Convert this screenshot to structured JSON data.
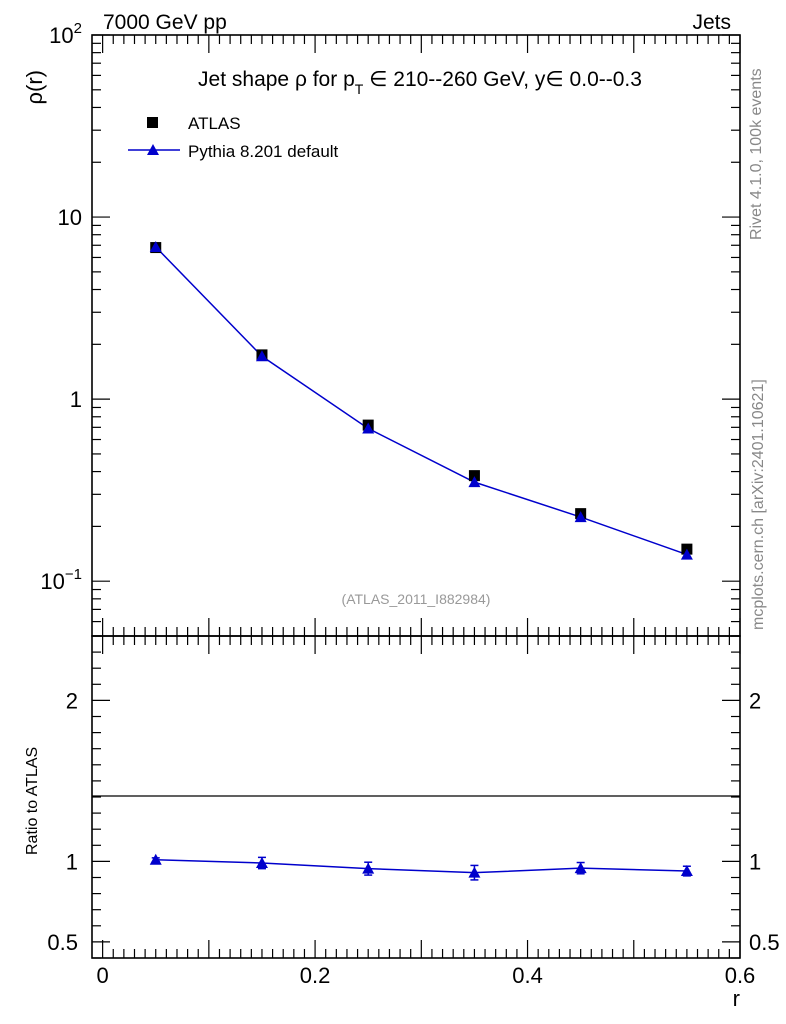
{
  "header": {
    "left": "7000 GeV pp",
    "right": "Jets"
  },
  "side_labels": {
    "rivet": "Rivet 4.1.0,  100k events",
    "mcplots": "mcplots.cern.ch [arXiv:2401.10621]"
  },
  "colors": {
    "data": "#000000",
    "mc": "#0000cc",
    "watermark": "#999999"
  },
  "chart_data": [
    {
      "type": "scatter",
      "panel": "main",
      "title": "Jet shape ρ for p_T ∈ 210--260 GeV, y∈ 0.0--0.3",
      "title_parts": {
        "pre": "Jet shape ρ for p",
        "sub": "T",
        "post": " ∈ 210--260 GeV, y∈ 0.0--0.3"
      },
      "ylabel": "ρ(r)",
      "yscale": "log",
      "ylim": [
        0.05,
        100
      ],
      "xlim": [
        -0.01,
        0.6
      ],
      "yticks": [
        {
          "value": 100,
          "base": "10",
          "exp": "2"
        },
        {
          "value": 10,
          "base": "10",
          "exp": ""
        },
        {
          "value": 1,
          "base": "1",
          "exp": ""
        },
        {
          "value": 0.1,
          "base": "10",
          "exp": "−1"
        }
      ],
      "watermark": "(ATLAS_2011_I882984)",
      "legend": [
        {
          "label": "ATLAS",
          "marker": "square"
        },
        {
          "label": "Pythia 8.201 default",
          "marker": "triangle"
        }
      ],
      "series": [
        {
          "name": "ATLAS",
          "x": [
            0.05,
            0.15,
            0.25,
            0.35,
            0.45,
            0.55
          ],
          "y": [
            6.8,
            1.75,
            0.72,
            0.38,
            0.235,
            0.15
          ]
        },
        {
          "name": "Pythia 8.201 default",
          "x": [
            0.05,
            0.15,
            0.25,
            0.35,
            0.45,
            0.55
          ],
          "y": [
            6.85,
            1.72,
            0.69,
            0.35,
            0.225,
            0.14
          ]
        }
      ]
    },
    {
      "type": "scatter",
      "panel": "ratio",
      "ylabel": "Ratio to ATLAS",
      "xlabel": "r",
      "ylim": [
        0.4,
        2.4
      ],
      "xlim": [
        -0.01,
        0.6
      ],
      "xticks": [
        "0",
        "0.2",
        "0.4",
        "0.6"
      ],
      "yticks": [
        "0.5",
        "1",
        "2"
      ],
      "series": [
        {
          "name": "Pythia 8.201 default / ATLAS",
          "x": [
            0.05,
            0.15,
            0.25,
            0.35,
            0.45,
            0.55
          ],
          "y": [
            1.01,
            0.99,
            0.955,
            0.93,
            0.958,
            0.94
          ],
          "err": [
            0.012,
            0.035,
            0.04,
            0.045,
            0.035,
            0.03
          ]
        }
      ]
    }
  ]
}
